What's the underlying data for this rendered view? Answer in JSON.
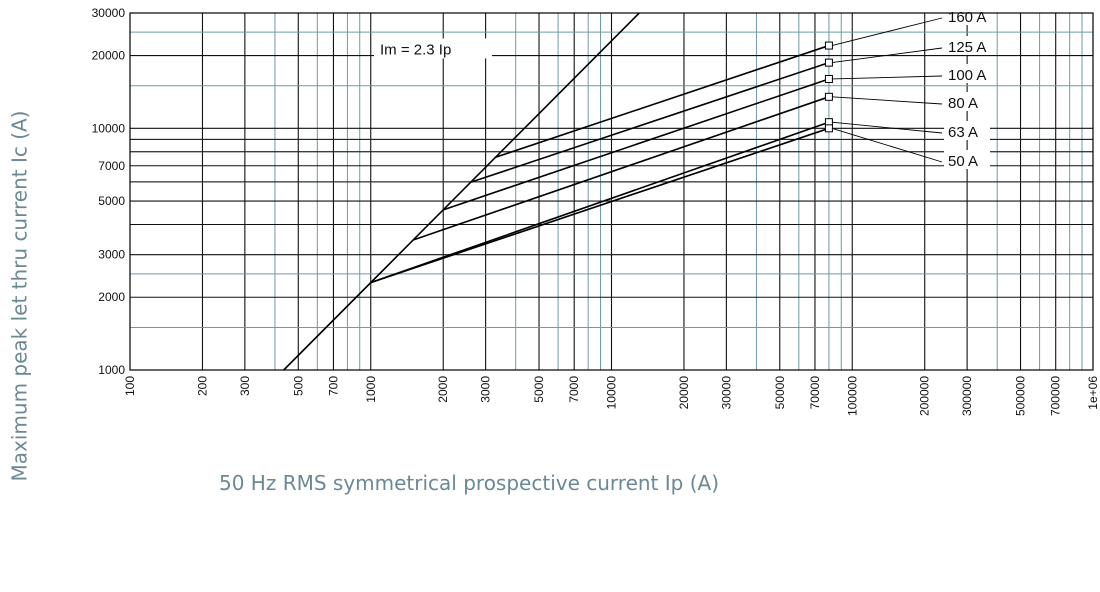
{
  "chart_data": {
    "type": "line",
    "xscale": "log",
    "yscale": "log",
    "xlabel": "50 Hz RMS symmetrical prospective current Ip (A)",
    "ylabel": "Maximum peak let thru current Ic (A)",
    "xlim": [
      100,
      1000000
    ],
    "ylim": [
      1000,
      30000
    ],
    "grid": true,
    "x_ticks": [
      "100",
      "200",
      "300",
      "500",
      "700",
      "1000",
      "2000",
      "3000",
      "5000",
      "7000",
      "10000",
      "20000",
      "30000",
      "50000",
      "70000",
      "100000",
      "200000",
      "300000",
      "500000",
      "700000",
      "1e+06"
    ],
    "y_ticks": [
      "1000",
      "2000",
      "3000",
      "5000",
      "7000",
      "10000",
      "20000",
      "30000"
    ],
    "reference_line": {
      "label": "Im = 2.3 Ip",
      "points": [
        [
          435,
          1000
        ],
        [
          13040,
          30000
        ]
      ]
    },
    "series": [
      {
        "name": "160 A",
        "points": [
          [
            3300,
            7590
          ],
          [
            80000,
            22000
          ]
        ]
      },
      {
        "name": "125 A",
        "points": [
          [
            2600,
            5980
          ],
          [
            80000,
            18700
          ]
        ]
      },
      {
        "name": "100 A",
        "points": [
          [
            2000,
            4600
          ],
          [
            80000,
            16000
          ]
        ]
      },
      {
        "name": "80 A",
        "points": [
          [
            1500,
            3450
          ],
          [
            80000,
            13500
          ]
        ]
      },
      {
        "name": "63 A",
        "points": [
          [
            1000,
            2300
          ],
          [
            80000,
            10600
          ]
        ]
      },
      {
        "name": "50 A",
        "points": [
          [
            1000,
            2300
          ],
          [
            80000,
            10000
          ]
        ]
      }
    ]
  }
}
